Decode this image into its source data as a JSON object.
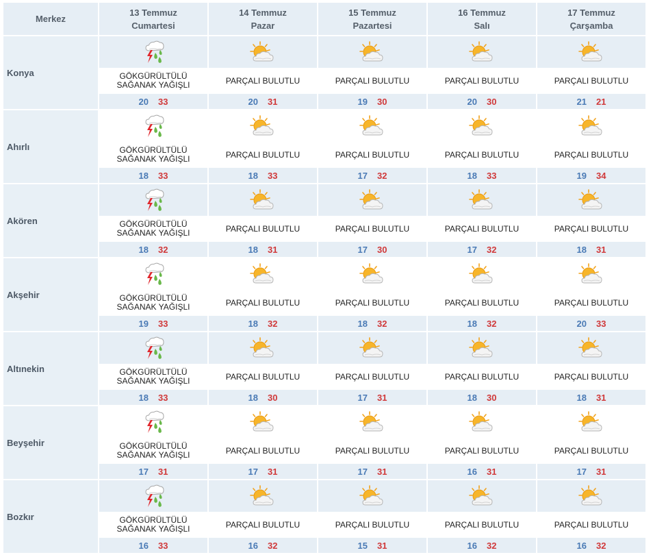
{
  "header": {
    "center_label": "Merkez",
    "days": [
      {
        "date": "13 Temmuz",
        "weekday": "Cumartesi"
      },
      {
        "date": "14 Temmuz",
        "weekday": "Pazar"
      },
      {
        "date": "15 Temmuz",
        "weekday": "Pazartesi"
      },
      {
        "date": "16 Temmuz",
        "weekday": "Salı"
      },
      {
        "date": "17 Temmuz",
        "weekday": "Çarşamba"
      }
    ]
  },
  "colors": {
    "min_temp": "#4a7ab5",
    "max_temp": "#d0393a",
    "row_shade": "#e6eef5"
  },
  "rows": [
    {
      "city": "Konya",
      "days": [
        {
          "icon": "thunderstorm-rain-icon",
          "desc1": "GÖKGÜRÜLTÜLÜ",
          "desc2": "SAĞANAK YAĞIŞLI",
          "min": "20",
          "max": "33"
        },
        {
          "icon": "partly-cloudy-icon",
          "desc1": "PARÇALI BULUTLU",
          "desc2": "",
          "min": "20",
          "max": "31"
        },
        {
          "icon": "partly-cloudy-icon",
          "desc1": "PARÇALI BULUTLU",
          "desc2": "",
          "min": "19",
          "max": "30"
        },
        {
          "icon": "partly-cloudy-icon",
          "desc1": "PARÇALI BULUTLU",
          "desc2": "",
          "min": "20",
          "max": "30"
        },
        {
          "icon": "partly-cloudy-icon",
          "desc1": "PARÇALI BULUTLU",
          "desc2": "",
          "min": "21",
          "max": "21"
        }
      ]
    },
    {
      "city": "Ahırlı",
      "days": [
        {
          "icon": "thunderstorm-rain-icon",
          "desc1": "GÖKGÜRÜLTÜLÜ",
          "desc2": "SAĞANAK YAĞIŞLI",
          "min": "18",
          "max": "33"
        },
        {
          "icon": "partly-cloudy-icon",
          "desc1": "PARÇALI BULUTLU",
          "desc2": "",
          "min": "18",
          "max": "33"
        },
        {
          "icon": "partly-cloudy-icon",
          "desc1": "PARÇALI BULUTLU",
          "desc2": "",
          "min": "17",
          "max": "32"
        },
        {
          "icon": "partly-cloudy-icon",
          "desc1": "PARÇALI BULUTLU",
          "desc2": "",
          "min": "18",
          "max": "33"
        },
        {
          "icon": "partly-cloudy-icon",
          "desc1": "PARÇALI BULUTLU",
          "desc2": "",
          "min": "19",
          "max": "34"
        }
      ]
    },
    {
      "city": "Akören",
      "days": [
        {
          "icon": "thunderstorm-rain-icon",
          "desc1": "GÖKGÜRÜLTÜLÜ",
          "desc2": "SAĞANAK YAĞIŞLI",
          "min": "18",
          "max": "32"
        },
        {
          "icon": "partly-cloudy-icon",
          "desc1": "PARÇALI BULUTLU",
          "desc2": "",
          "min": "18",
          "max": "31"
        },
        {
          "icon": "partly-cloudy-icon",
          "desc1": "PARÇALI BULUTLU",
          "desc2": "",
          "min": "17",
          "max": "30"
        },
        {
          "icon": "partly-cloudy-icon",
          "desc1": "PARÇALI BULUTLU",
          "desc2": "",
          "min": "17",
          "max": "32"
        },
        {
          "icon": "partly-cloudy-icon",
          "desc1": "PARÇALI BULUTLU",
          "desc2": "",
          "min": "18",
          "max": "31"
        }
      ]
    },
    {
      "city": "Akşehir",
      "days": [
        {
          "icon": "thunderstorm-rain-icon",
          "desc1": "GÖKGÜRÜLTÜLÜ",
          "desc2": "SAĞANAK YAĞIŞLI",
          "min": "19",
          "max": "33"
        },
        {
          "icon": "partly-cloudy-icon",
          "desc1": "PARÇALI BULUTLU",
          "desc2": "",
          "min": "18",
          "max": "32"
        },
        {
          "icon": "partly-cloudy-icon",
          "desc1": "PARÇALI BULUTLU",
          "desc2": "",
          "min": "18",
          "max": "32"
        },
        {
          "icon": "partly-cloudy-icon",
          "desc1": "PARÇALI BULUTLU",
          "desc2": "",
          "min": "18",
          "max": "32"
        },
        {
          "icon": "partly-cloudy-icon",
          "desc1": "PARÇALI BULUTLU",
          "desc2": "",
          "min": "20",
          "max": "33"
        }
      ]
    },
    {
      "city": "Altınekin",
      "days": [
        {
          "icon": "thunderstorm-rain-icon",
          "desc1": "GÖKGÜRÜLTÜLÜ",
          "desc2": "SAĞANAK YAĞIŞLI",
          "min": "18",
          "max": "33"
        },
        {
          "icon": "partly-cloudy-icon",
          "desc1": "PARÇALI BULUTLU",
          "desc2": "",
          "min": "18",
          "max": "30"
        },
        {
          "icon": "partly-cloudy-icon",
          "desc1": "PARÇALI BULUTLU",
          "desc2": "",
          "min": "17",
          "max": "31"
        },
        {
          "icon": "partly-cloudy-icon",
          "desc1": "PARÇALI BULUTLU",
          "desc2": "",
          "min": "18",
          "max": "30"
        },
        {
          "icon": "partly-cloudy-icon",
          "desc1": "PARÇALI BULUTLU",
          "desc2": "",
          "min": "18",
          "max": "31"
        }
      ]
    },
    {
      "city": "Beyşehir",
      "days": [
        {
          "icon": "thunderstorm-rain-icon",
          "desc1": "GÖKGÜRÜLTÜLÜ",
          "desc2": "SAĞANAK YAĞIŞLI",
          "min": "17",
          "max": "31"
        },
        {
          "icon": "partly-cloudy-icon",
          "desc1": "PARÇALI BULUTLU",
          "desc2": "",
          "min": "17",
          "max": "31"
        },
        {
          "icon": "partly-cloudy-icon",
          "desc1": "PARÇALI BULUTLU",
          "desc2": "",
          "min": "17",
          "max": "31"
        },
        {
          "icon": "partly-cloudy-icon",
          "desc1": "PARÇALI BULUTLU",
          "desc2": "",
          "min": "16",
          "max": "31"
        },
        {
          "icon": "partly-cloudy-icon",
          "desc1": "PARÇALI BULUTLU",
          "desc2": "",
          "min": "17",
          "max": "31"
        }
      ]
    },
    {
      "city": "Bozkır",
      "days": [
        {
          "icon": "thunderstorm-rain-icon",
          "desc1": "GÖKGÜRÜLTÜLÜ",
          "desc2": "SAĞANAK YAĞIŞLI",
          "min": "16",
          "max": "33"
        },
        {
          "icon": "partly-cloudy-icon",
          "desc1": "PARÇALI BULUTLU",
          "desc2": "",
          "min": "16",
          "max": "32"
        },
        {
          "icon": "partly-cloudy-icon",
          "desc1": "PARÇALI BULUTLU",
          "desc2": "",
          "min": "15",
          "max": "31"
        },
        {
          "icon": "partly-cloudy-icon",
          "desc1": "PARÇALI BULUTLU",
          "desc2": "",
          "min": "16",
          "max": "32"
        },
        {
          "icon": "partly-cloudy-icon",
          "desc1": "PARÇALI BULUTLU",
          "desc2": "",
          "min": "16",
          "max": "32"
        }
      ]
    }
  ]
}
